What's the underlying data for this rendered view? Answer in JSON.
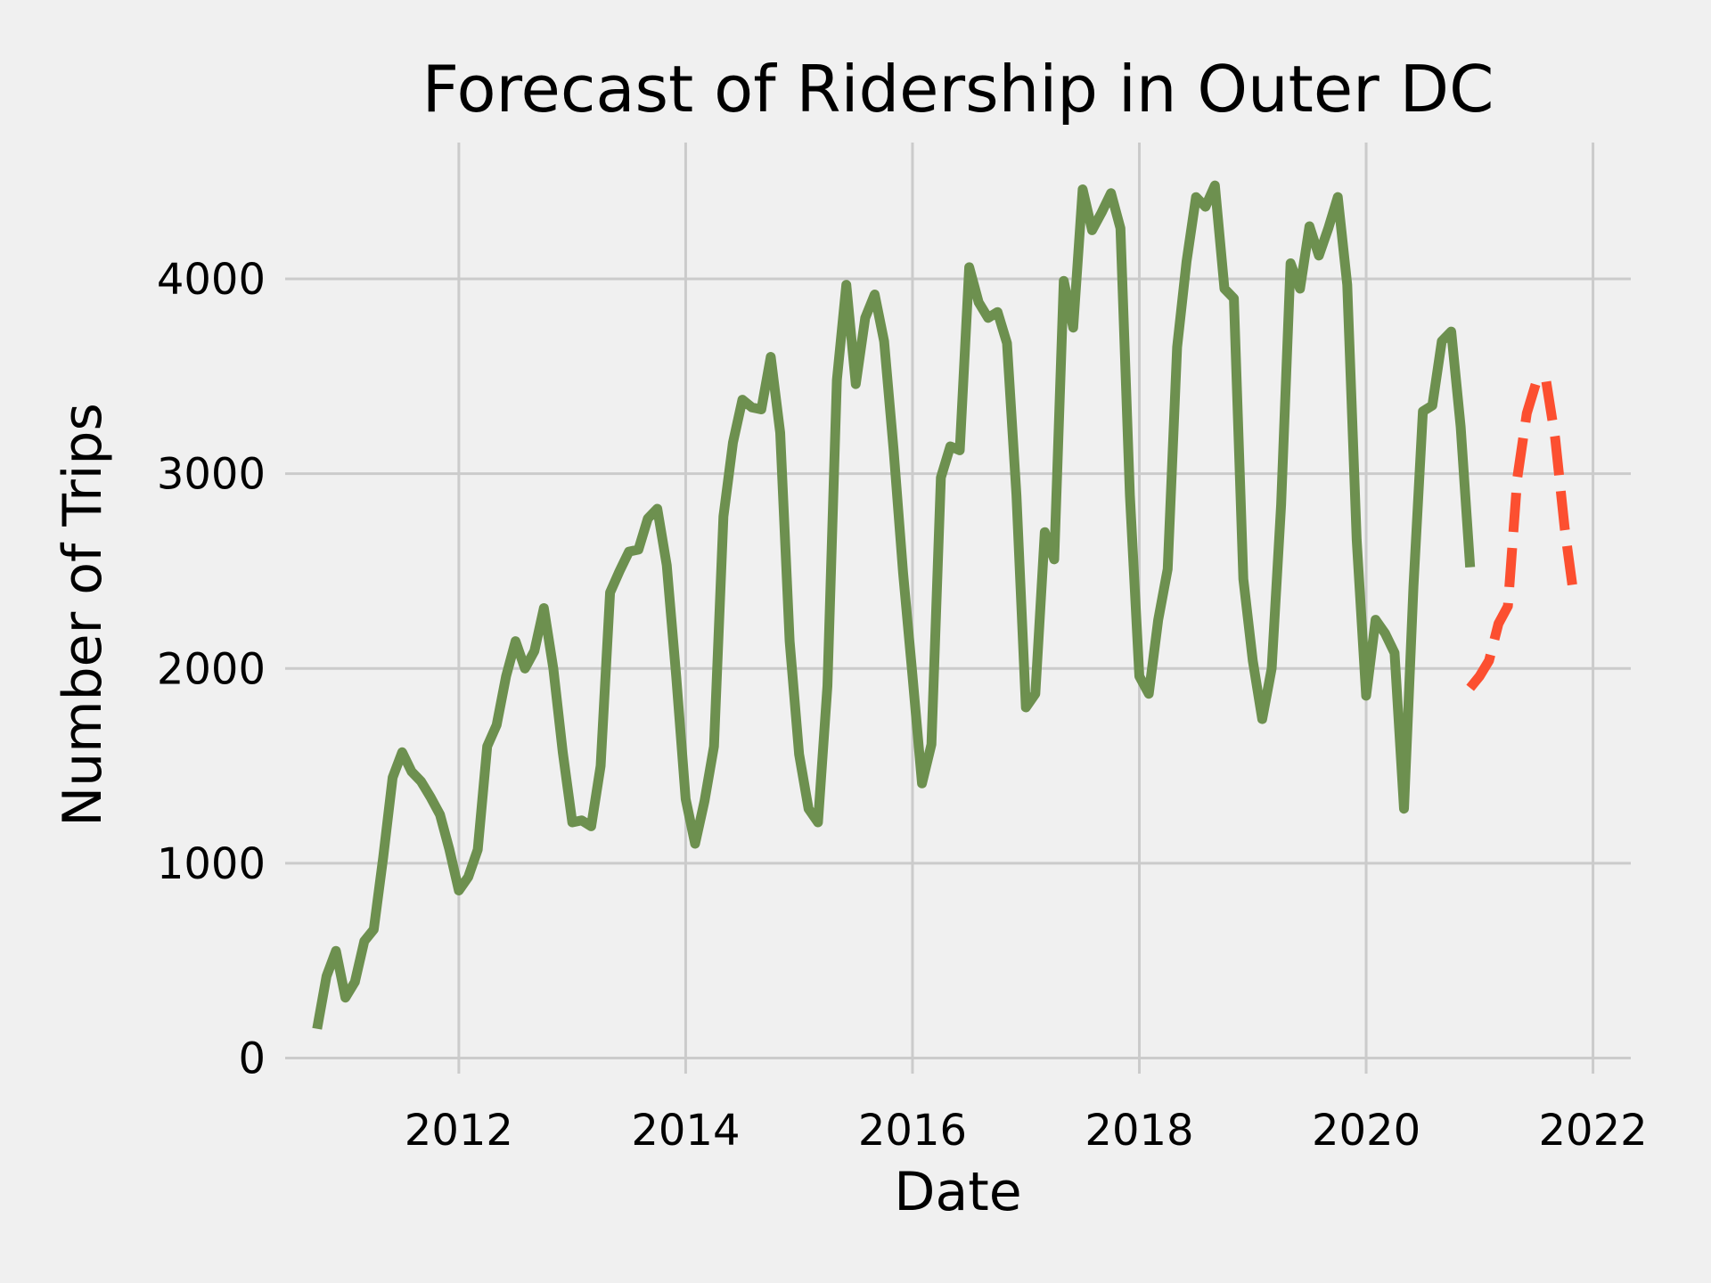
{
  "chart_data": {
    "type": "line",
    "title": "Forecast of Ridership in Outer DC",
    "xlabel": "Date",
    "ylabel": "Number of Trips",
    "xlim": [
      "2010-06-20",
      "2022-05-01"
    ],
    "ylim": [
      -80,
      4700
    ],
    "x_ticks": [
      "2012",
      "2014",
      "2016",
      "2018",
      "2020",
      "2022"
    ],
    "y_ticks": [
      0,
      1000,
      2000,
      3000,
      4000
    ],
    "grid": true,
    "legend": "none",
    "colors": {
      "background": "#f0f0f0",
      "grid": "#cbcbcb",
      "history": "#6d904f",
      "forecast": "#fc4f30"
    },
    "series": [
      {
        "style": "solid",
        "color": "#6d904f",
        "x": [
          "2010-10",
          "2010-11",
          "2010-12",
          "2011-01",
          "2011-02",
          "2011-03",
          "2011-04",
          "2011-05",
          "2011-06",
          "2011-07",
          "2011-08",
          "2011-09",
          "2011-10",
          "2011-11",
          "2011-12",
          "2012-01",
          "2012-02",
          "2012-03",
          "2012-04",
          "2012-05",
          "2012-06",
          "2012-07",
          "2012-08",
          "2012-09",
          "2012-10",
          "2012-11",
          "2012-12",
          "2013-01",
          "2013-02",
          "2013-03",
          "2013-04",
          "2013-05",
          "2013-06",
          "2013-07",
          "2013-08",
          "2013-09",
          "2013-10",
          "2013-11",
          "2013-12",
          "2014-01",
          "2014-02",
          "2014-03",
          "2014-04",
          "2014-05",
          "2014-06",
          "2014-07",
          "2014-08",
          "2014-09",
          "2014-10",
          "2014-11",
          "2014-12",
          "2015-01",
          "2015-02",
          "2015-03",
          "2015-04",
          "2015-05",
          "2015-06",
          "2015-07",
          "2015-08",
          "2015-09",
          "2015-10",
          "2015-11",
          "2015-12",
          "2016-01",
          "2016-02",
          "2016-03",
          "2016-04",
          "2016-05",
          "2016-06",
          "2016-07",
          "2016-08",
          "2016-09",
          "2016-10",
          "2016-11",
          "2016-12",
          "2017-01",
          "2017-02",
          "2017-03",
          "2017-04",
          "2017-05",
          "2017-06",
          "2017-07",
          "2017-08",
          "2017-09",
          "2017-10",
          "2017-11",
          "2017-12",
          "2018-01",
          "2018-02",
          "2018-03",
          "2018-04",
          "2018-05",
          "2018-06",
          "2018-07",
          "2018-08",
          "2018-09",
          "2018-10",
          "2018-11",
          "2018-12",
          "2019-01",
          "2019-02",
          "2019-03",
          "2019-04",
          "2019-05",
          "2019-06",
          "2019-07",
          "2019-08",
          "2019-09",
          "2019-10",
          "2019-11",
          "2019-12",
          "2020-01",
          "2020-02",
          "2020-03",
          "2020-04",
          "2020-05",
          "2020-06",
          "2020-07",
          "2020-08",
          "2020-09",
          "2020-10",
          "2020-11",
          "2020-12"
        ],
        "values": [
          150,
          420,
          550,
          310,
          390,
          600,
          660,
          1030,
          1440,
          1570,
          1470,
          1420,
          1340,
          1250,
          1070,
          860,
          930,
          1070,
          1600,
          1710,
          1960,
          2140,
          2000,
          2090,
          2310,
          2000,
          1570,
          1210,
          1220,
          1190,
          1500,
          2390,
          2500,
          2600,
          2610,
          2770,
          2820,
          2530,
          1960,
          1330,
          1100,
          1320,
          1600,
          2780,
          3160,
          3380,
          3340,
          3330,
          3600,
          3210,
          2140,
          1560,
          1280,
          1210,
          1910,
          3480,
          3970,
          3460,
          3800,
          3920,
          3680,
          3120,
          2490,
          1960,
          1410,
          1610,
          2980,
          3140,
          3120,
          4060,
          3880,
          3800,
          3830,
          3670,
          2890,
          1800,
          1870,
          2700,
          2560,
          3990,
          3750,
          4460,
          4250,
          4340,
          4440,
          4260,
          2890,
          1960,
          1870,
          2250,
          2510,
          3650,
          4090,
          4420,
          4370,
          4480,
          3950,
          3900,
          2460,
          2040,
          1740,
          2000,
          2840,
          4080,
          3950,
          4270,
          4120,
          4260,
          4420,
          3970,
          2660,
          1860,
          2250,
          2180,
          2080,
          1280,
          2420,
          3320,
          3350,
          3680,
          3730,
          3240,
          2520
        ]
      },
      {
        "style": "dashed",
        "color": "#fc4f30",
        "x": [
          "2020-12",
          "2021-01",
          "2021-02",
          "2021-03",
          "2021-04",
          "2021-05",
          "2021-06",
          "2021-07",
          "2021-08",
          "2021-09",
          "2021-10",
          "2021-11"
        ],
        "values": [
          1900,
          1960,
          2040,
          2230,
          2320,
          2980,
          3310,
          3470,
          3490,
          3180,
          2720,
          2360
        ]
      }
    ]
  }
}
